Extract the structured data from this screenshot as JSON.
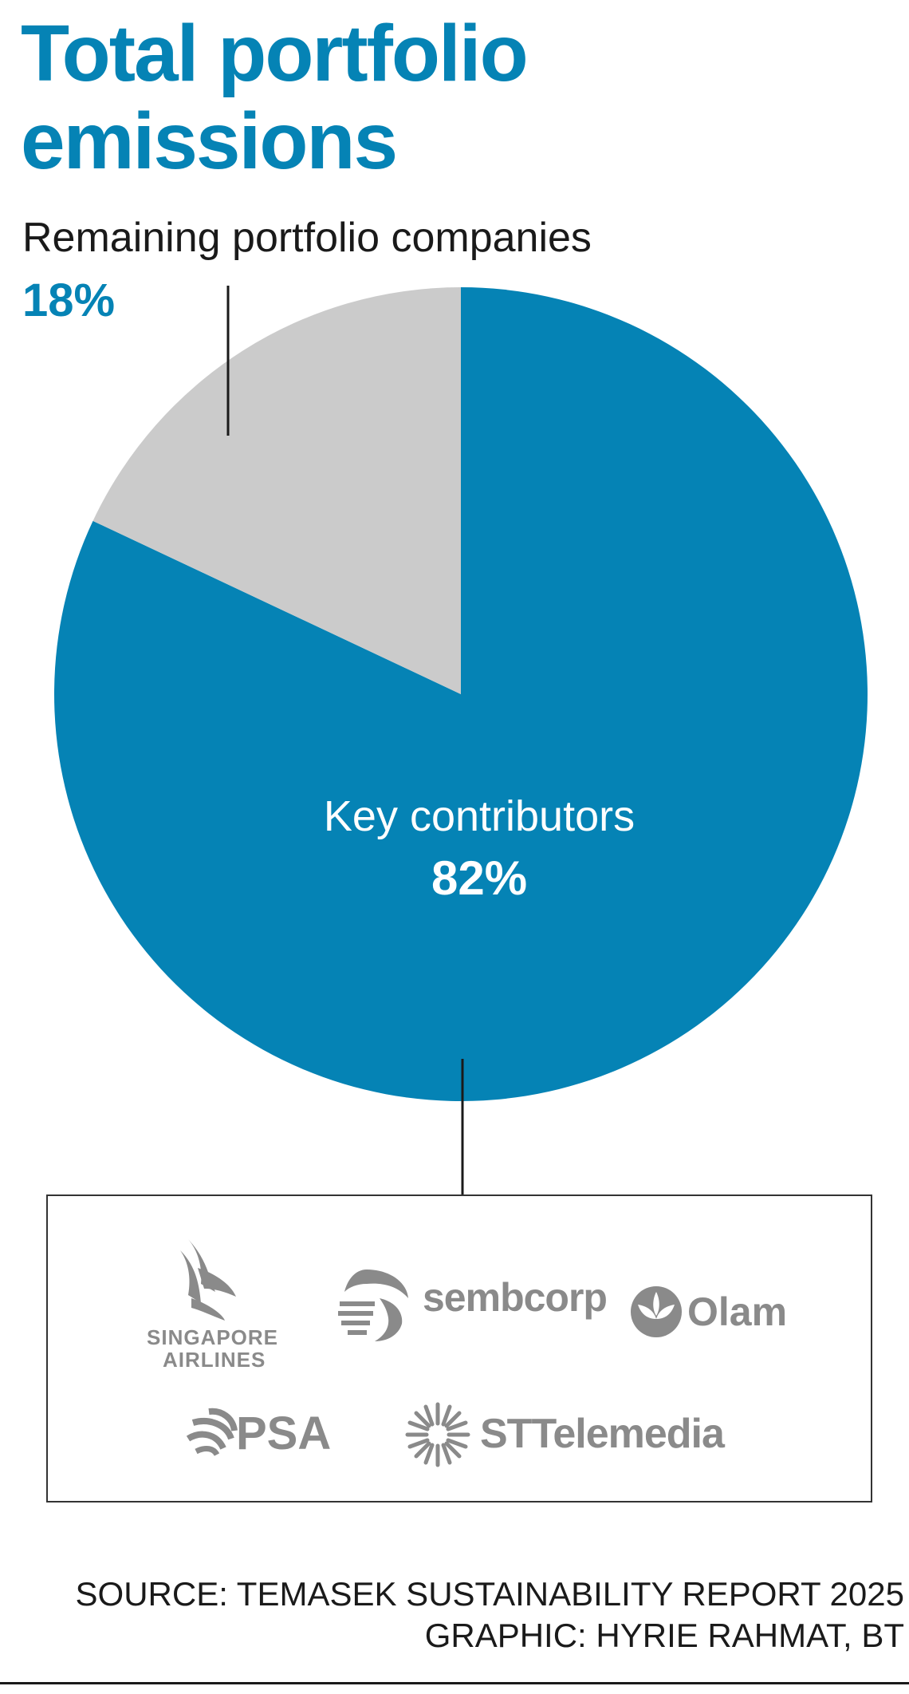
{
  "title_line1": "Total portfolio",
  "title_line2": "emissions",
  "chart_data": {
    "type": "pie",
    "slices": [
      {
        "label": "Key contributors",
        "value": 82,
        "display": "82%",
        "color": "#0583b5"
      },
      {
        "label": "Remaining portfolio companies",
        "value": 18,
        "display": "18%",
        "color": "#cbcbcb"
      }
    ]
  },
  "logos": {
    "sia_line1": "SINGAPORE",
    "sia_line2": "AIRLINES",
    "sembcorp": "sembcorp",
    "olam": "Olam",
    "psa": "PSA",
    "sttelemedia": "STTelemedia"
  },
  "source_line1": "SOURCE: TEMASEK SUSTAINABILITY REPORT 2025",
  "source_line2": "GRAPHIC: HYRIE RAHMAT, BT"
}
